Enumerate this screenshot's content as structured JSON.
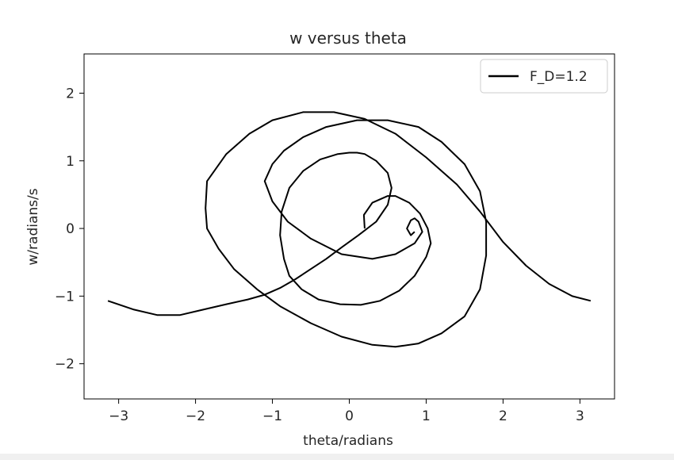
{
  "chart_data": {
    "type": "line",
    "title": "w versus theta",
    "xlabel": "theta/radians",
    "ylabel": "w/radians/s",
    "xlim": [
      -3.45,
      3.45
    ],
    "ylim": [
      -2.52,
      2.58
    ],
    "x_ticks": [
      -3,
      -2,
      -1,
      0,
      1,
      2,
      3
    ],
    "y_ticks": [
      -2,
      -1,
      0,
      1,
      2
    ],
    "x_tick_labels": [
      "−3",
      "−2",
      "−1",
      "0",
      "1",
      "2",
      "3"
    ],
    "y_tick_labels": [
      "−2",
      "−1",
      "0",
      "1",
      "2"
    ],
    "grid": false,
    "legend_position": "top-right",
    "series": [
      {
        "name": "F_D=1.2",
        "color": "#000000",
        "x": [
          0.2,
          0.19,
          0.3,
          0.5,
          0.6,
          0.78,
          0.92,
          1.02,
          1.06,
          1.0,
          0.85,
          0.65,
          0.4,
          0.15,
          -0.12,
          -0.4,
          -0.62,
          -0.78,
          -0.85,
          -0.9,
          -0.88,
          -0.78,
          -0.6,
          -0.38,
          -0.15,
          0.0,
          0.1,
          0.2,
          0.35,
          0.5,
          0.55,
          0.5,
          0.35,
          0.12,
          -0.1,
          -0.3,
          -0.5,
          -0.7,
          -0.9,
          -1.1,
          -1.32,
          -1.6,
          -1.9,
          -2.2,
          -2.5,
          -2.8,
          -3.14,
          3.14,
          2.9,
          2.6,
          2.3,
          2.0,
          1.7,
          1.4,
          1.0,
          0.6,
          0.2,
          -0.2,
          -0.6,
          -1.0,
          -1.3,
          -1.6,
          -1.85,
          -1.87,
          -1.85,
          -1.7,
          -1.5,
          -1.2,
          -0.9,
          -0.5,
          -0.1,
          0.3,
          0.6,
          0.9,
          1.2,
          1.5,
          1.7,
          1.78,
          1.78,
          1.7,
          1.5,
          1.2,
          0.9,
          0.5,
          0.1,
          -0.3,
          -0.6,
          -0.85,
          -1.0,
          -1.1,
          -1.0,
          -0.8,
          -0.5,
          -0.1,
          0.3,
          0.6,
          0.85,
          0.95,
          0.9,
          0.85,
          0.8,
          0.75,
          0.8,
          0.85
        ],
        "y": [
          0.0,
          0.2,
          0.38,
          0.48,
          0.48,
          0.38,
          0.22,
          0.0,
          -0.22,
          -0.42,
          -0.7,
          -0.92,
          -1.07,
          -1.13,
          -1.12,
          -1.05,
          -0.9,
          -0.7,
          -0.45,
          -0.1,
          0.25,
          0.6,
          0.85,
          1.02,
          1.1,
          1.12,
          1.12,
          1.1,
          1.0,
          0.82,
          0.6,
          0.35,
          0.1,
          -0.1,
          -0.28,
          -0.45,
          -0.6,
          -0.75,
          -0.88,
          -0.98,
          -1.05,
          -1.12,
          -1.2,
          -1.28,
          -1.28,
          -1.2,
          -1.07,
          -1.07,
          -1.0,
          -0.82,
          -0.55,
          -0.2,
          0.25,
          0.65,
          1.05,
          1.4,
          1.62,
          1.72,
          1.72,
          1.6,
          1.4,
          1.1,
          0.7,
          0.3,
          0.0,
          -0.3,
          -0.6,
          -0.9,
          -1.15,
          -1.4,
          -1.6,
          -1.72,
          -1.75,
          -1.7,
          -1.55,
          -1.3,
          -0.9,
          -0.4,
          0.1,
          0.55,
          0.95,
          1.28,
          1.5,
          1.6,
          1.6,
          1.5,
          1.35,
          1.15,
          0.95,
          0.7,
          0.4,
          0.1,
          -0.15,
          -0.38,
          -0.45,
          -0.38,
          -0.22,
          -0.05,
          0.1,
          0.15,
          0.12,
          0.0,
          -0.1,
          -0.05
        ]
      }
    ]
  }
}
